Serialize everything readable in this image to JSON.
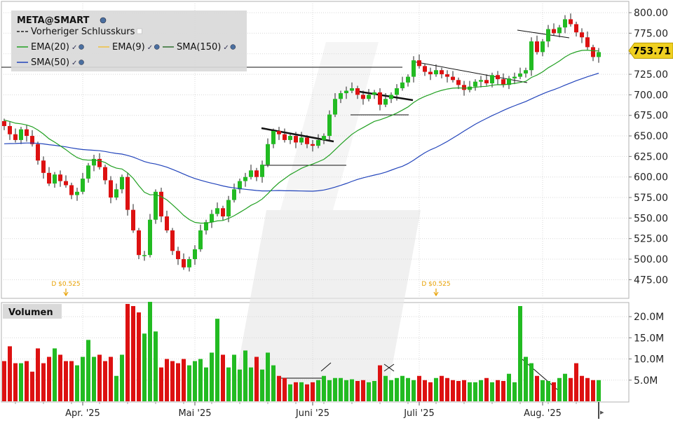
{
  "chart_data": [
    {
      "type": "candlestick",
      "symbol_label": "META@SMART",
      "current_price_label": "753.71",
      "y_ticks": [
        "800.00",
        "775.00",
        "750.00",
        "725.00",
        "700.00",
        "675.00",
        "650.00",
        "625.00",
        "600.00",
        "575.00",
        "550.00",
        "525.00",
        "500.00",
        "475.00"
      ],
      "ylim": [
        454,
        812
      ],
      "x_months": [
        {
          "label": "Apr. '25",
          "index": 14
        },
        {
          "label": "Mai '25",
          "index": 34
        },
        {
          "label": "Juni '25",
          "index": 55
        },
        {
          "label": "Juli '25",
          "index": 74
        },
        {
          "label": "Aug. '25",
          "index": 96
        }
      ],
      "legend": [
        {
          "label": "Vorheriger Schlusskurs",
          "color": "#222222",
          "style": "dashed"
        },
        {
          "label": "EMA(20)",
          "color": "#22a022",
          "style": "solid"
        },
        {
          "label": "EMA(9)",
          "color": "#f0c040",
          "style": "solid"
        },
        {
          "label": "SMA(150)",
          "color": "#2f6f2f",
          "style": "solid"
        },
        {
          "label": "SMA(50)",
          "color": "#2244bb",
          "style": "solid"
        }
      ],
      "dividend_markers": [
        {
          "label": "D $0.525",
          "index": 11
        },
        {
          "label": "D $0.525",
          "index": 77
        }
      ],
      "colors": {
        "up": "#22bb22",
        "down": "#dd1111",
        "ema20": "#22a022",
        "sma50": "#2244bb"
      },
      "closes": [
        662,
        652,
        645,
        658,
        650,
        640,
        620,
        605,
        592,
        603,
        595,
        590,
        578,
        582,
        598,
        614,
        622,
        612,
        596,
        575,
        585,
        600,
        560,
        535,
        505,
        505,
        548,
        582,
        552,
        535,
        510,
        500,
        490,
        500,
        512,
        535,
        545,
        555,
        562,
        552,
        572,
        585,
        595,
        600,
        608,
        600,
        615,
        640,
        656,
        652,
        645,
        650,
        642,
        648,
        640,
        638,
        645,
        650,
        676,
        695,
        702,
        705,
        708,
        700,
        695,
        700,
        703,
        688,
        695,
        700,
        708,
        715,
        722,
        742,
        735,
        728,
        725,
        730,
        725,
        722,
        718,
        712,
        706,
        710,
        716,
        718,
        714,
        724,
        719,
        712,
        720,
        722,
        726,
        730,
        765,
        752,
        765,
        780,
        775,
        782,
        792,
        786,
        776,
        770,
        758,
        746,
        752
      ]
    },
    {
      "type": "bar",
      "label": "Volumen",
      "y_ticks": [
        "20.0M",
        "15.0M",
        "10.0M",
        "5.0M"
      ],
      "ylim": [
        0,
        23
      ],
      "values": [
        9.5,
        13,
        9,
        9,
        9.5,
        7,
        12.5,
        9,
        10.5,
        12.5,
        11,
        9.5,
        9.5,
        8.5,
        10.5,
        14.5,
        10.5,
        11,
        9.5,
        10.5,
        6,
        11,
        23,
        22.5,
        21,
        16,
        23.5,
        16.5,
        8,
        10,
        9.5,
        9,
        10,
        8.5,
        9.5,
        10,
        8,
        11.5,
        19.5,
        11,
        8,
        11,
        7.5,
        12,
        8,
        10.5,
        7.5,
        11.5,
        8.5,
        6,
        5.5,
        4,
        4.5,
        4.5,
        4,
        4.5,
        5,
        6,
        5,
        5.5,
        5.5,
        5,
        5.2,
        4.8,
        5,
        4.5,
        4.8,
        8.5,
        6,
        5,
        5.5,
        6,
        5.5,
        5,
        6,
        5,
        4.5,
        5.5,
        6,
        5.5,
        5,
        4.8,
        5,
        4.5,
        4.5,
        5,
        5.5,
        4.5,
        5,
        4.8,
        6.5,
        4.5,
        22.5,
        10.5,
        9,
        6,
        5,
        4.8,
        4.5,
        5.5,
        6.5,
        5.5,
        9,
        6,
        5.5,
        5,
        5
      ]
    }
  ]
}
